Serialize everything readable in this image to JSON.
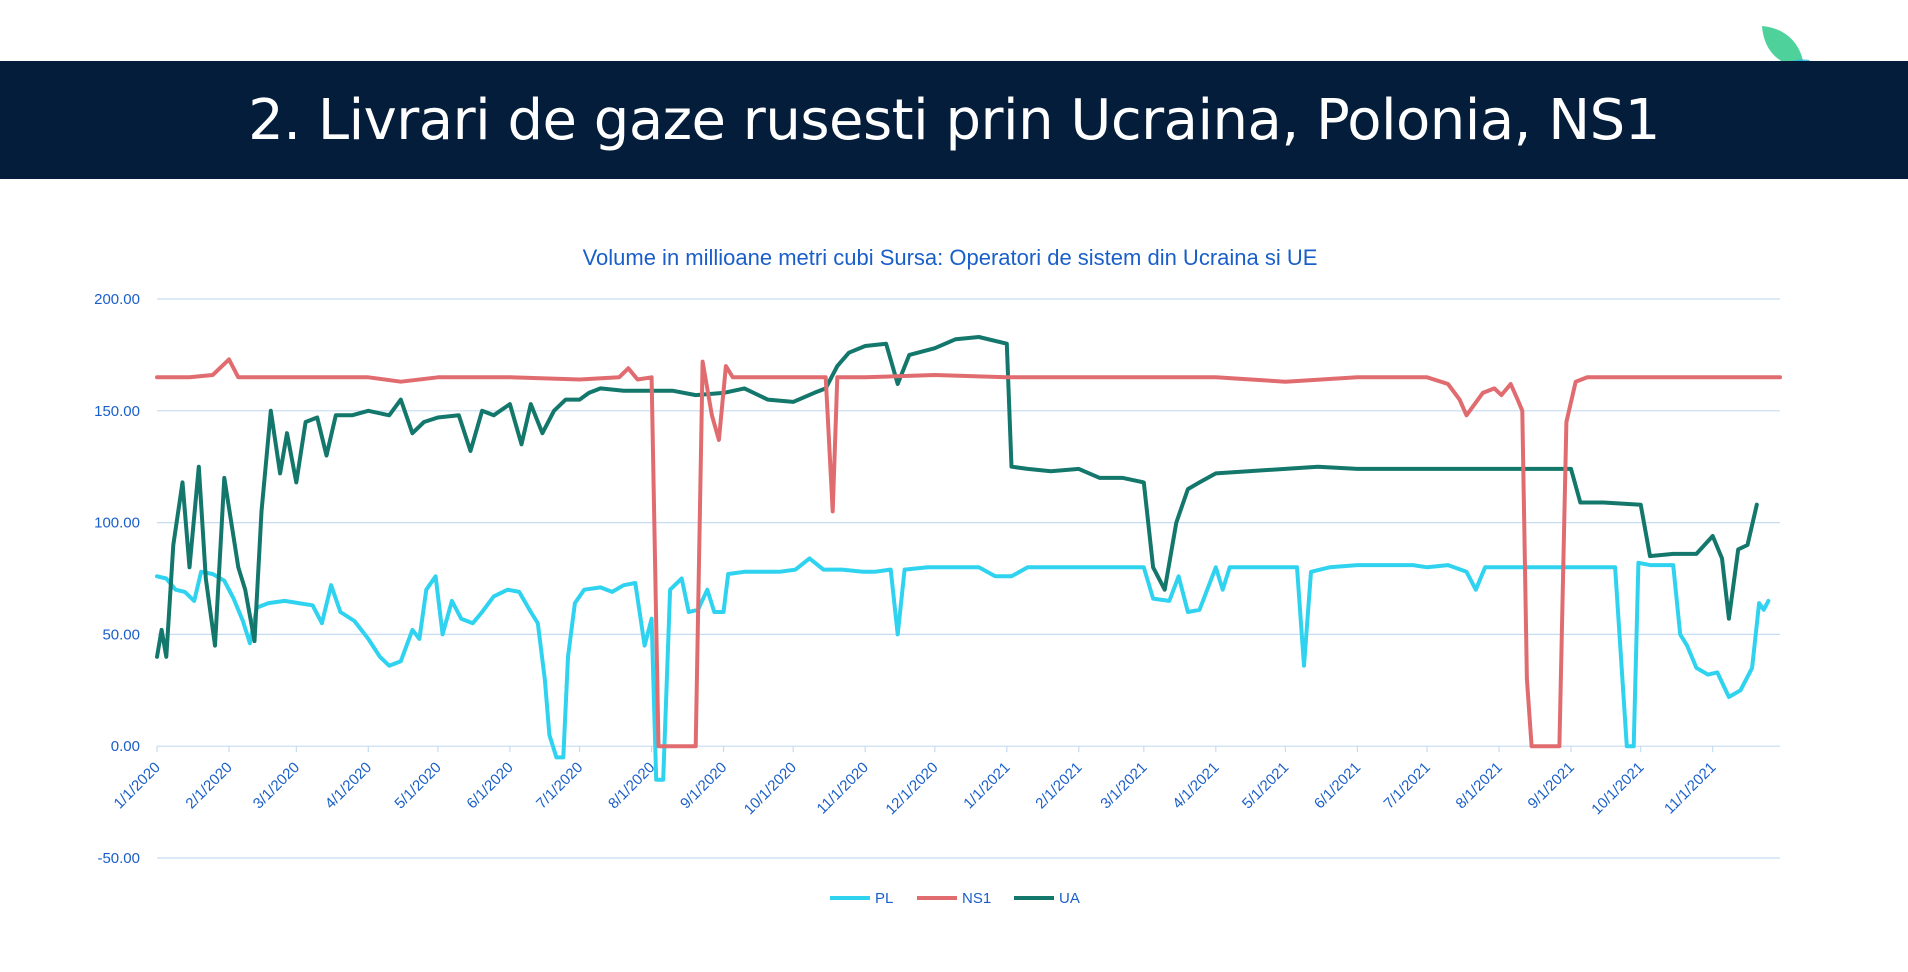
{
  "slide": {
    "title": "2. Livrari de gaze rusesti prin Ucraina, Polonia, NS1"
  },
  "chart_data": {
    "type": "line",
    "title": "Volume in millioane metri cubi  Sursa: Operatori de sistem din Ucraina si UE",
    "xlabel": "",
    "ylabel": "",
    "ylim": [
      -50,
      200
    ],
    "y_ticks": [
      "-50.00",
      "0.00",
      "50.00",
      "100.00",
      "150.00",
      "200.00"
    ],
    "x_ticks": [
      "1/1/2020",
      "2/1/2020",
      "3/1/2020",
      "4/1/2020",
      "5/1/2020",
      "6/1/2020",
      "7/1/2020",
      "8/1/2020",
      "9/1/2020",
      "10/1/2020",
      "11/1/2020",
      "12/1/2020",
      "1/1/2021",
      "2/1/2021",
      "3/1/2021",
      "4/1/2021",
      "5/1/2021",
      "6/1/2021",
      "7/1/2021",
      "8/1/2021",
      "9/1/2021",
      "10/1/2021",
      "11/1/2021"
    ],
    "x_range": [
      "1/1/2020",
      "11/30/2021"
    ],
    "grid": true,
    "legend": "bottom",
    "series": [
      {
        "name": "PL",
        "color": "#2fd3ef",
        "points": [
          [
            "1/1/2020",
            76
          ],
          [
            "1/5/2020",
            75
          ],
          [
            "1/9/2020",
            70
          ],
          [
            "1/13/2020",
            69
          ],
          [
            "1/17/2020",
            65
          ],
          [
            "1/20/2020",
            78
          ],
          [
            "1/25/2020",
            77
          ],
          [
            "1/30/2020",
            74
          ],
          [
            "2/3/2020",
            66
          ],
          [
            "2/7/2020",
            56
          ],
          [
            "2/10/2020",
            46
          ],
          [
            "2/13/2020",
            62
          ],
          [
            "2/18/2020",
            64
          ],
          [
            "2/25/2020",
            65
          ],
          [
            "3/2/2020",
            64
          ],
          [
            "3/8/2020",
            63
          ],
          [
            "3/12/2020",
            55
          ],
          [
            "3/16/2020",
            72
          ],
          [
            "3/20/2020",
            60
          ],
          [
            "3/26/2020",
            56
          ],
          [
            "4/1/2020",
            48
          ],
          [
            "4/6/2020",
            40
          ],
          [
            "4/10/2020",
            36
          ],
          [
            "4/15/2020",
            38
          ],
          [
            "4/20/2020",
            52
          ],
          [
            "4/23/2020",
            48
          ],
          [
            "4/26/2020",
            70
          ],
          [
            "4/30/2020",
            76
          ],
          [
            "5/3/2020",
            50
          ],
          [
            "5/7/2020",
            65
          ],
          [
            "5/11/2020",
            57
          ],
          [
            "5/16/2020",
            55
          ],
          [
            "5/20/2020",
            60
          ],
          [
            "5/25/2020",
            67
          ],
          [
            "5/31/2020",
            70
          ],
          [
            "6/5/2020",
            69
          ],
          [
            "6/10/2020",
            60
          ],
          [
            "6/13/2020",
            55
          ],
          [
            "6/16/2020",
            30
          ],
          [
            "6/18/2020",
            5
          ],
          [
            "6/21/2020",
            -5
          ],
          [
            "6/24/2020",
            -5
          ],
          [
            "6/26/2020",
            40
          ],
          [
            "6/29/2020",
            64
          ],
          [
            "7/3/2020",
            70
          ],
          [
            "7/10/2020",
            71
          ],
          [
            "7/15/2020",
            69
          ],
          [
            "7/20/2020",
            72
          ],
          [
            "7/25/2020",
            73
          ],
          [
            "7/29/2020",
            45
          ],
          [
            "8/1/2020",
            57
          ],
          [
            "8/3/2020",
            -15
          ],
          [
            "8/6/2020",
            -15
          ],
          [
            "8/9/2020",
            70
          ],
          [
            "8/14/2020",
            75
          ],
          [
            "8/17/2020",
            60
          ],
          [
            "8/21/2020",
            61
          ],
          [
            "8/25/2020",
            70
          ],
          [
            "8/28/2020",
            60
          ],
          [
            "9/1/2020",
            60
          ],
          [
            "9/3/2020",
            77
          ],
          [
            "9/10/2020",
            78
          ],
          [
            "9/17/2020",
            78
          ],
          [
            "9/25/2020",
            78
          ],
          [
            "10/2/2020",
            79
          ],
          [
            "10/8/2020",
            84
          ],
          [
            "10/14/2020",
            79
          ],
          [
            "10/22/2020",
            79
          ],
          [
            "10/31/2020",
            78
          ],
          [
            "11/5/2020",
            78
          ],
          [
            "11/12/2020",
            79
          ],
          [
            "11/15/2020",
            50
          ],
          [
            "11/18/2020",
            79
          ],
          [
            "11/28/2020",
            80
          ],
          [
            "12/10/2020",
            80
          ],
          [
            "12/20/2020",
            80
          ],
          [
            "12/27/2020",
            76
          ],
          [
            "1/3/2021",
            76
          ],
          [
            "1/10/2021",
            80
          ],
          [
            "1/20/2021",
            80
          ],
          [
            "2/1/2021",
            80
          ],
          [
            "2/10/2021",
            80
          ],
          [
            "2/20/2021",
            80
          ],
          [
            "3/1/2021",
            80
          ],
          [
            "3/5/2021",
            66
          ],
          [
            "3/12/2021",
            65
          ],
          [
            "3/16/2021",
            76
          ],
          [
            "3/20/2021",
            60
          ],
          [
            "3/25/2021",
            61
          ],
          [
            "4/1/2021",
            80
          ],
          [
            "4/4/2021",
            70
          ],
          [
            "4/7/2021",
            80
          ],
          [
            "4/15/2021",
            80
          ],
          [
            "4/25/2021",
            80
          ],
          [
            "5/1/2021",
            80
          ],
          [
            "5/6/2021",
            80
          ],
          [
            "5/9/2021",
            36
          ],
          [
            "5/12/2021",
            78
          ],
          [
            "5/20/2021",
            80
          ],
          [
            "6/1/2021",
            81
          ],
          [
            "6/15/2021",
            81
          ],
          [
            "6/25/2021",
            81
          ],
          [
            "7/1/2021",
            80
          ],
          [
            "7/10/2021",
            81
          ],
          [
            "7/18/2021",
            78
          ],
          [
            "7/22/2021",
            70
          ],
          [
            "7/26/2021",
            80
          ],
          [
            "8/10/2021",
            80
          ],
          [
            "8/16/2021",
            80
          ],
          [
            "8/20/2021",
            80
          ],
          [
            "8/30/2021",
            80
          ],
          [
            "9/10/2021",
            80
          ],
          [
            "9/15/2021",
            80
          ],
          [
            "9/20/2021",
            80
          ],
          [
            "9/25/2021",
            0
          ],
          [
            "9/28/2021",
            0
          ],
          [
            "9/30/2021",
            82
          ],
          [
            "10/5/2021",
            81
          ],
          [
            "10/10/2021",
            81
          ],
          [
            "10/15/2021",
            81
          ],
          [
            "10/18/2021",
            50
          ],
          [
            "10/21/2021",
            45
          ],
          [
            "10/25/2021",
            35
          ],
          [
            "10/30/2021",
            32
          ],
          [
            "11/3/2021",
            33
          ],
          [
            "11/8/2021",
            22
          ],
          [
            "11/13/2021",
            25
          ],
          [
            "11/18/2021",
            35
          ],
          [
            "11/21/2021",
            64
          ],
          [
            "11/23/2021",
            61
          ],
          [
            "11/25/2021",
            65
          ]
        ]
      },
      {
        "name": "NS1",
        "color": "#e06c70",
        "points": [
          [
            "1/1/2020",
            165
          ],
          [
            "1/15/2020",
            165
          ],
          [
            "1/25/2020",
            166
          ],
          [
            "2/1/2020",
            173
          ],
          [
            "2/5/2020",
            165
          ],
          [
            "3/1/2020",
            165
          ],
          [
            "4/1/2020",
            165
          ],
          [
            "4/15/2020",
            163
          ],
          [
            "5/1/2020",
            165
          ],
          [
            "6/1/2020",
            165
          ],
          [
            "7/1/2020",
            164
          ],
          [
            "7/18/2020",
            165
          ],
          [
            "7/22/2020",
            169
          ],
          [
            "7/26/2020",
            164
          ],
          [
            "8/1/2020",
            165
          ],
          [
            "8/4/2020",
            0
          ],
          [
            "8/20/2020",
            0
          ],
          [
            "8/23/2020",
            172
          ],
          [
            "8/27/2020",
            148
          ],
          [
            "8/30/2020",
            137
          ],
          [
            "9/2/2020",
            170
          ],
          [
            "9/5/2020",
            165
          ],
          [
            "10/1/2020",
            165
          ],
          [
            "10/15/2020",
            165
          ],
          [
            "10/18/2020",
            105
          ],
          [
            "10/20/2020",
            165
          ],
          [
            "11/1/2020",
            165
          ],
          [
            "12/1/2020",
            166
          ],
          [
            "1/1/2021",
            165
          ],
          [
            "1/15/2021",
            165
          ],
          [
            "2/1/2021",
            165
          ],
          [
            "3/1/2021",
            165
          ],
          [
            "4/1/2021",
            165
          ],
          [
            "5/1/2021",
            163
          ],
          [
            "6/1/2021",
            165
          ],
          [
            "7/1/2021",
            165
          ],
          [
            "7/10/2021",
            162
          ],
          [
            "7/15/2021",
            155
          ],
          [
            "7/18/2021",
            148
          ],
          [
            "7/25/2021",
            158
          ],
          [
            "7/30/2021",
            160
          ],
          [
            "8/2/2021",
            157
          ],
          [
            "8/6/2021",
            162
          ],
          [
            "8/9/2021",
            155
          ],
          [
            "8/11/2021",
            150
          ],
          [
            "8/13/2021",
            30
          ],
          [
            "8/15/2021",
            0
          ],
          [
            "8/27/2021",
            0
          ],
          [
            "8/30/2021",
            145
          ],
          [
            "9/3/2021",
            163
          ],
          [
            "9/8/2021",
            165
          ],
          [
            "10/1/2021",
            165
          ],
          [
            "11/1/2021",
            165
          ],
          [
            "11/30/2021",
            165
          ]
        ]
      },
      {
        "name": "UA",
        "color": "#13776c",
        "points": [
          [
            "1/1/2020",
            40
          ],
          [
            "1/3/2020",
            52
          ],
          [
            "1/5/2020",
            40
          ],
          [
            "1/8/2020",
            90
          ],
          [
            "1/12/2020",
            118
          ],
          [
            "1/15/2020",
            80
          ],
          [
            "1/19/2020",
            125
          ],
          [
            "1/22/2020",
            75
          ],
          [
            "1/26/2020",
            45
          ],
          [
            "1/30/2020",
            120
          ],
          [
            "2/2/2020",
            100
          ],
          [
            "2/5/2020",
            80
          ],
          [
            "2/8/2020",
            70
          ],
          [
            "2/12/2020",
            47
          ],
          [
            "2/15/2020",
            105
          ],
          [
            "2/19/2020",
            150
          ],
          [
            "2/23/2020",
            122
          ],
          [
            "2/26/2020",
            140
          ],
          [
            "3/1/2020",
            118
          ],
          [
            "3/5/2020",
            145
          ],
          [
            "3/10/2020",
            147
          ],
          [
            "3/14/2020",
            130
          ],
          [
            "3/18/2020",
            148
          ],
          [
            "3/25/2020",
            148
          ],
          [
            "4/1/2020",
            150
          ],
          [
            "4/10/2020",
            148
          ],
          [
            "4/15/2020",
            155
          ],
          [
            "4/20/2020",
            140
          ],
          [
            "4/25/2020",
            145
          ],
          [
            "5/1/2020",
            147
          ],
          [
            "5/10/2020",
            148
          ],
          [
            "5/15/2020",
            132
          ],
          [
            "5/20/2020",
            150
          ],
          [
            "5/25/2020",
            148
          ],
          [
            "6/1/2020",
            153
          ],
          [
            "6/6/2020",
            135
          ],
          [
            "6/10/2020",
            153
          ],
          [
            "6/15/2020",
            140
          ],
          [
            "6/20/2020",
            150
          ],
          [
            "6/25/2020",
            155
          ],
          [
            "7/1/2020",
            155
          ],
          [
            "7/5/2020",
            158
          ],
          [
            "7/10/2020",
            160
          ],
          [
            "7/20/2020",
            159
          ],
          [
            "8/1/2020",
            159
          ],
          [
            "8/10/2020",
            159
          ],
          [
            "8/20/2020",
            157
          ],
          [
            "9/1/2020",
            158
          ],
          [
            "9/10/2020",
            160
          ],
          [
            "9/20/2020",
            155
          ],
          [
            "10/1/2020",
            154
          ],
          [
            "10/10/2020",
            158
          ],
          [
            "10/15/2020",
            160
          ],
          [
            "10/20/2020",
            170
          ],
          [
            "10/25/2020",
            176
          ],
          [
            "11/1/2020",
            179
          ],
          [
            "11/10/2020",
            180
          ],
          [
            "11/15/2020",
            162
          ],
          [
            "11/20/2020",
            175
          ],
          [
            "12/1/2020",
            178
          ],
          [
            "12/10/2020",
            182
          ],
          [
            "12/20/2020",
            183
          ],
          [
            "1/1/2021",
            180
          ],
          [
            "1/3/2021",
            125
          ],
          [
            "1/10/2021",
            124
          ],
          [
            "1/20/2021",
            123
          ],
          [
            "2/1/2021",
            124
          ],
          [
            "2/10/2021",
            120
          ],
          [
            "2/20/2021",
            120
          ],
          [
            "3/1/2021",
            118
          ],
          [
            "3/5/2021",
            80
          ],
          [
            "3/10/2021",
            70
          ],
          [
            "3/15/2021",
            100
          ],
          [
            "3/20/2021",
            115
          ],
          [
            "3/25/2021",
            118
          ],
          [
            "4/1/2021",
            122
          ],
          [
            "4/15/2021",
            123
          ],
          [
            "5/1/2021",
            124
          ],
          [
            "5/15/2021",
            125
          ],
          [
            "6/1/2021",
            124
          ],
          [
            "6/15/2021",
            124
          ],
          [
            "7/1/2021",
            124
          ],
          [
            "7/15/2021",
            124
          ],
          [
            "8/1/2021",
            124
          ],
          [
            "8/15/2021",
            124
          ],
          [
            "9/1/2021",
            124
          ],
          [
            "9/5/2021",
            109
          ],
          [
            "9/15/2021",
            109
          ],
          [
            "10/1/2021",
            108
          ],
          [
            "10/5/2021",
            85
          ],
          [
            "10/15/2021",
            86
          ],
          [
            "10/25/2021",
            86
          ],
          [
            "11/1/2021",
            94
          ],
          [
            "11/5/2021",
            84
          ],
          [
            "11/8/2021",
            57
          ],
          [
            "11/12/2021",
            88
          ],
          [
            "11/16/2021",
            90
          ],
          [
            "11/20/2021",
            108
          ]
        ]
      }
    ]
  },
  "colors": {
    "title_bar": "#041d3a",
    "gridline": "#c6dcf2",
    "axis_text": "#1a5fc9"
  }
}
